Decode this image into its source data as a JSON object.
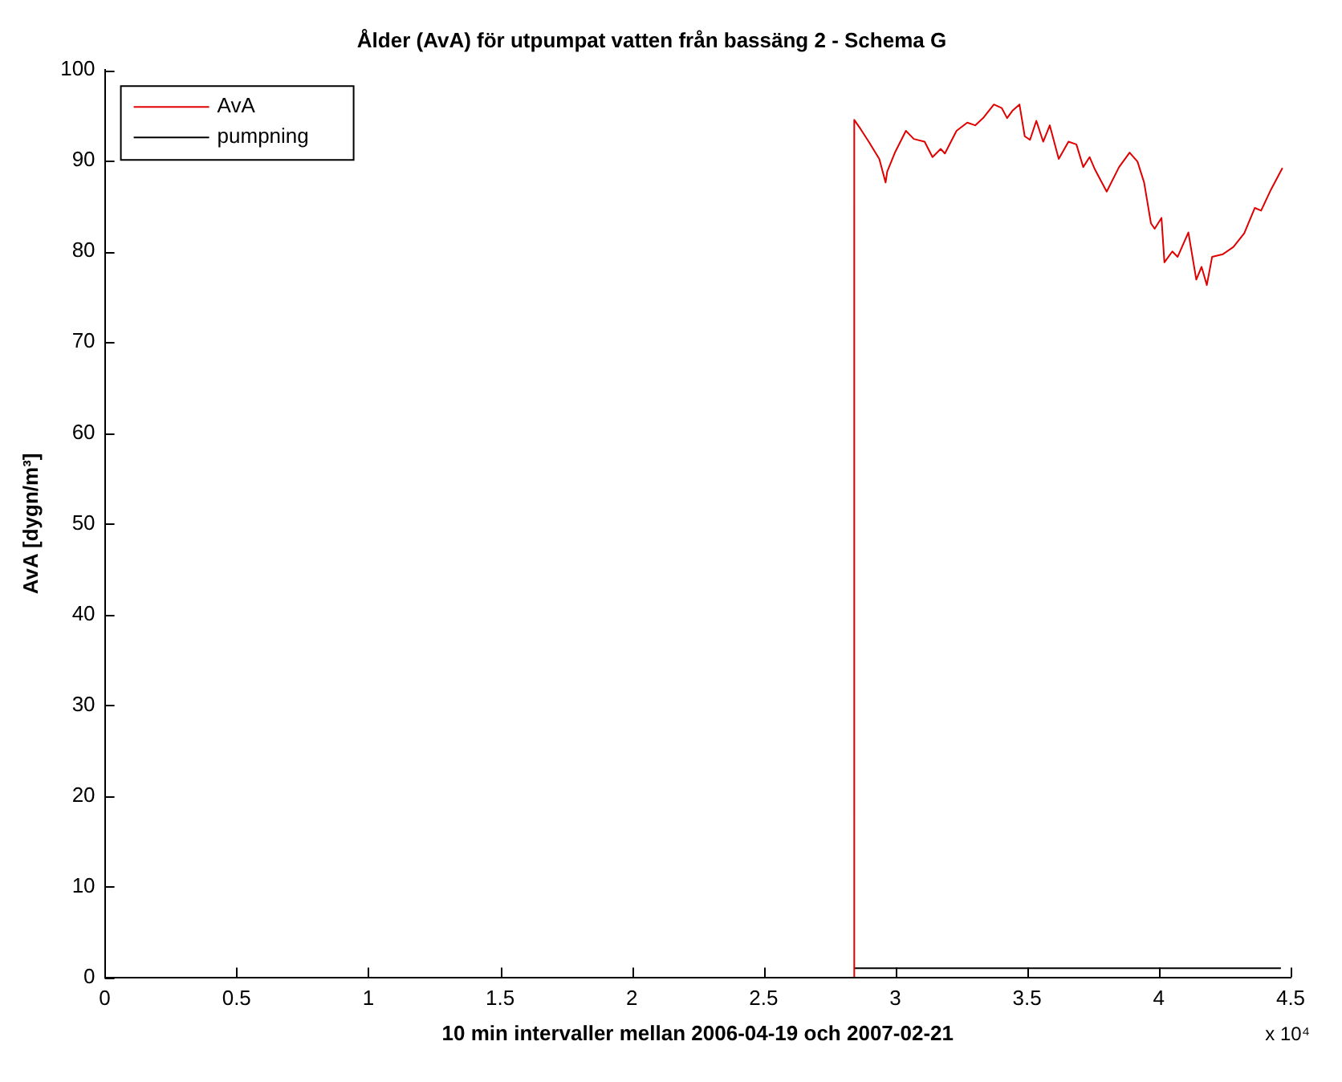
{
  "chart_data": {
    "type": "line",
    "title": "Ålder (AvA) för utpumpat vatten från bassäng 2 - Schema G",
    "xlabel": "10 min intervaller mellan 2006-04-19 och 2007-02-21",
    "ylabel": "AvA [dygn/m³]",
    "annotations": [
      "x 10⁴"
    ],
    "xlim": [
      0,
      4.5
    ],
    "xticks": [
      0,
      0.5,
      1,
      1.5,
      2,
      2.5,
      3,
      3.5,
      4,
      4.5
    ],
    "ylim": [
      0,
      100
    ],
    "yticks": [
      0,
      10,
      20,
      30,
      40,
      50,
      60,
      70,
      80,
      90,
      100
    ],
    "grid": false,
    "legend": "top left",
    "marker": "none",
    "line_style": "solid",
    "series": [
      {
        "name": "AvA",
        "color": "#e00000",
        "x": [
          2.844,
          2.844,
          2.868,
          2.899,
          2.939,
          2.963,
          2.969,
          3.0,
          3.04,
          3.07,
          3.111,
          3.141,
          3.172,
          3.188,
          3.232,
          3.273,
          3.303,
          3.333,
          3.374,
          3.404,
          3.424,
          3.444,
          3.471,
          3.491,
          3.511,
          3.535,
          3.561,
          3.586,
          3.62,
          3.657,
          3.687,
          3.713,
          3.737,
          3.758,
          3.802,
          3.849,
          3.889,
          3.919,
          3.944,
          3.97,
          3.984,
          4.01,
          4.021,
          4.051,
          4.071,
          4.112,
          4.142,
          4.162,
          4.182,
          4.202,
          4.243,
          4.283,
          4.324,
          4.364,
          4.388,
          4.425,
          4.469
        ],
        "values": [
          0,
          94.5,
          93.5,
          92.1,
          90.2,
          87.6,
          88.8,
          91.0,
          93.3,
          92.4,
          92.1,
          90.4,
          91.3,
          90.8,
          93.3,
          94.2,
          93.9,
          94.7,
          96.2,
          95.8,
          94.7,
          95.5,
          96.2,
          92.7,
          92.3,
          94.4,
          92.1,
          93.9,
          90.2,
          92.1,
          91.8,
          89.3,
          90.4,
          89.0,
          86.6,
          89.3,
          90.9,
          89.9,
          87.6,
          83.1,
          82.5,
          83.7,
          78.8,
          80.0,
          79.4,
          82.1,
          76.9,
          78.3,
          76.3,
          79.4,
          79.7,
          80.5,
          82.0,
          84.8,
          84.5,
          86.8,
          89.2
        ]
      },
      {
        "name": "pumpning",
        "color": "#000000",
        "x": [
          2.844,
          4.463
        ],
        "values": [
          1,
          1
        ]
      }
    ]
  }
}
